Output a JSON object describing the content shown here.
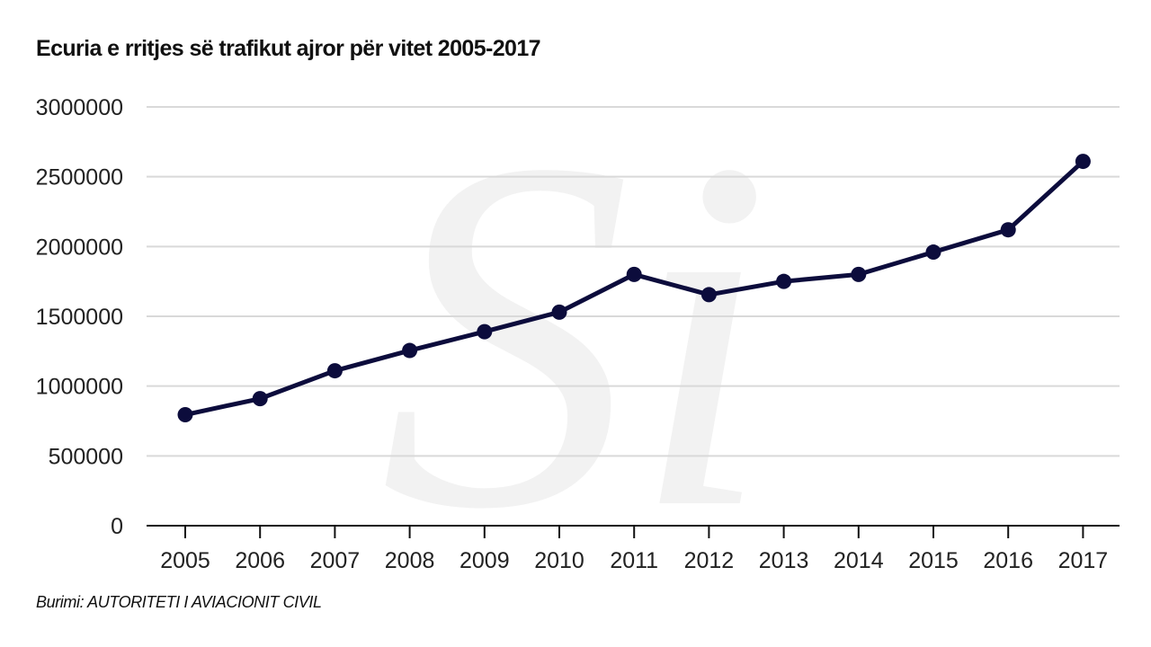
{
  "title": "Ecuria e rritjes së trafikut ajror për vitet 2005-2017",
  "source": "Burimi: AUTORITETI I AVIACIONIT CIVIL",
  "watermark": "Si",
  "colors": {
    "line": "#0c0c3c",
    "grid": "#d9d9d9",
    "axis": "#111111",
    "watermark": "#f2f2f2"
  },
  "chart_data": {
    "type": "line",
    "title": "Ecuria e rritjes së trafikut ajror për vitet 2005-2017",
    "xlabel": "",
    "ylabel": "",
    "categories": [
      "2005",
      "2006",
      "2007",
      "2008",
      "2009",
      "2010",
      "2011",
      "2012",
      "2013",
      "2014",
      "2015",
      "2016",
      "2017"
    ],
    "series": [
      {
        "values": [
          795000,
          910000,
          1110000,
          1255000,
          1390000,
          1530000,
          1800000,
          1655000,
          1750000,
          1800000,
          1960000,
          2120000,
          2610000
        ]
      }
    ],
    "ylim": [
      0,
      3000000
    ],
    "yticks": [
      "0",
      "500000",
      "1000000",
      "1500000",
      "2000000",
      "2500000",
      "3000000"
    ],
    "grid": true,
    "legend": "none"
  }
}
